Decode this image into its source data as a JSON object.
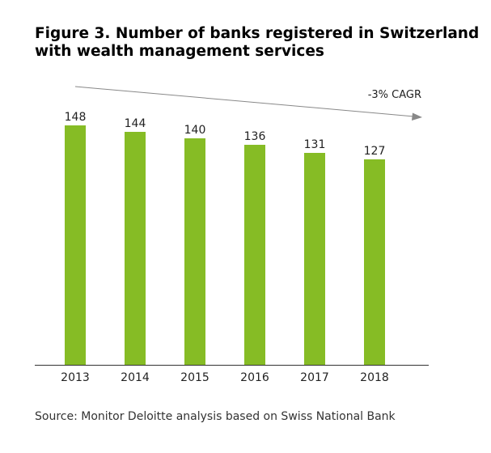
{
  "figure": {
    "title_line1": "Figure 3. Number of banks registered in Switzerland",
    "title_line2": "with wealth management services",
    "source": "Source: Monitor Deloitte analysis based on Swiss National Bank"
  },
  "colors": {
    "bar": "#86bc25",
    "axis": "#333333",
    "trend": "#888888",
    "text": "#222222"
  },
  "chart_data": {
    "type": "bar",
    "title": "Figure 3. Number of banks registered in Switzerland with wealth management services",
    "categories": [
      "2013",
      "2014",
      "2015",
      "2016",
      "2017",
      "2018"
    ],
    "values": [
      148,
      144,
      140,
      136,
      131,
      127
    ],
    "xlabel": "",
    "ylabel": "",
    "ylim": [
      0,
      160
    ],
    "grid": false,
    "legend": "none",
    "data_labels": true,
    "annotation": {
      "text": "-3% CAGR",
      "kind": "trend-arrow"
    }
  }
}
